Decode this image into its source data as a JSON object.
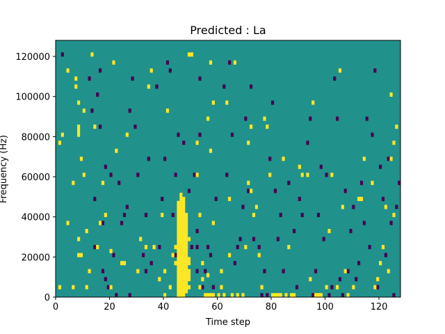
{
  "chart_data": {
    "type": "heatmap",
    "title": "Predicted : La",
    "xlabel": "Time step",
    "ylabel": "Frequency (Hz)",
    "xlim": [
      0,
      128
    ],
    "ylim": [
      0,
      128000
    ],
    "x_ticks": [
      0,
      20,
      40,
      60,
      80,
      100,
      120
    ],
    "y_ticks": [
      0,
      20000,
      40000,
      60000,
      80000,
      100000,
      120000
    ],
    "x_tick_labels": [
      "0",
      "20",
      "40",
      "60",
      "80",
      "100",
      "120"
    ],
    "y_tick_labels": [
      "0",
      "20000",
      "40000",
      "60000",
      "80000",
      "100000",
      "120000"
    ],
    "colormap": "viridis",
    "colors": {
      "background": "#21918c",
      "high": "#fde725",
      "low": "#440154"
    },
    "grid": false,
    "rows": 64,
    "row_height_hz": 2000,
    "high_cells": [
      [
        1,
        2
      ],
      [
        1,
        38
      ],
      [
        2,
        40
      ],
      [
        4,
        18
      ],
      [
        4,
        56
      ],
      [
        6,
        2
      ],
      [
        6,
        28
      ],
      [
        7,
        52
      ],
      [
        7,
        54
      ],
      [
        8,
        10
      ],
      [
        8,
        14
      ],
      [
        8,
        40
      ],
      [
        8,
        41
      ],
      [
        8,
        42
      ],
      [
        8,
        48
      ],
      [
        9,
        34
      ],
      [
        9,
        10
      ],
      [
        10,
        30
      ],
      [
        10,
        46
      ],
      [
        11,
        2
      ],
      [
        11,
        16
      ],
      [
        12,
        6
      ],
      [
        13,
        60
      ],
      [
        14,
        42
      ],
      [
        15,
        12
      ],
      [
        16,
        18
      ],
      [
        17,
        28
      ],
      [
        18,
        20
      ],
      [
        20,
        2
      ],
      [
        20,
        11
      ],
      [
        21,
        58
      ],
      [
        22,
        36
      ],
      [
        24,
        8
      ],
      [
        25,
        8
      ],
      [
        26,
        40
      ],
      [
        30,
        6
      ],
      [
        31,
        14
      ],
      [
        33,
        12
      ],
      [
        34,
        52
      ],
      [
        35,
        56
      ],
      [
        36,
        12
      ],
      [
        38,
        4
      ],
      [
        39,
        20
      ],
      [
        40,
        0
      ],
      [
        40,
        6
      ],
      [
        41,
        46
      ],
      [
        42,
        2
      ],
      [
        43,
        10
      ],
      [
        44,
        8
      ],
      [
        44,
        12
      ],
      [
        45,
        0
      ],
      [
        45,
        1
      ],
      [
        45,
        2
      ],
      [
        45,
        3
      ],
      [
        45,
        4
      ],
      [
        45,
        5
      ],
      [
        45,
        6
      ],
      [
        45,
        7
      ],
      [
        45,
        8
      ],
      [
        45,
        9
      ],
      [
        45,
        10
      ],
      [
        45,
        11
      ],
      [
        45,
        12
      ],
      [
        45,
        13
      ],
      [
        45,
        14
      ],
      [
        45,
        15
      ],
      [
        45,
        16
      ],
      [
        45,
        17
      ],
      [
        45,
        18
      ],
      [
        45,
        19
      ],
      [
        45,
        20
      ],
      [
        45,
        21
      ],
      [
        45,
        22
      ],
      [
        45,
        23
      ],
      [
        46,
        0
      ],
      [
        46,
        1
      ],
      [
        46,
        2
      ],
      [
        46,
        3
      ],
      [
        46,
        4
      ],
      [
        46,
        5
      ],
      [
        46,
        6
      ],
      [
        46,
        7
      ],
      [
        46,
        8
      ],
      [
        46,
        9
      ],
      [
        46,
        10
      ],
      [
        46,
        11
      ],
      [
        46,
        12
      ],
      [
        46,
        13
      ],
      [
        46,
        14
      ],
      [
        46,
        15
      ],
      [
        46,
        16
      ],
      [
        46,
        17
      ],
      [
        46,
        18
      ],
      [
        46,
        19
      ],
      [
        46,
        20
      ],
      [
        46,
        21
      ],
      [
        46,
        22
      ],
      [
        46,
        23
      ],
      [
        46,
        24
      ],
      [
        46,
        25
      ],
      [
        47,
        0
      ],
      [
        47,
        1
      ],
      [
        47,
        2
      ],
      [
        47,
        3
      ],
      [
        47,
        4
      ],
      [
        47,
        5
      ],
      [
        47,
        6
      ],
      [
        47,
        7
      ],
      [
        47,
        8
      ],
      [
        47,
        9
      ],
      [
        47,
        10
      ],
      [
        47,
        11
      ],
      [
        47,
        12
      ],
      [
        47,
        13
      ],
      [
        47,
        14
      ],
      [
        47,
        15
      ],
      [
        47,
        16
      ],
      [
        47,
        17
      ],
      [
        47,
        18
      ],
      [
        47,
        19
      ],
      [
        47,
        20
      ],
      [
        47,
        21
      ],
      [
        47,
        22
      ],
      [
        47,
        23
      ],
      [
        47,
        24
      ],
      [
        48,
        1
      ],
      [
        48,
        2
      ],
      [
        48,
        3
      ],
      [
        48,
        4
      ],
      [
        48,
        5
      ],
      [
        48,
        6
      ],
      [
        48,
        7
      ],
      [
        48,
        8
      ],
      [
        48,
        9
      ],
      [
        48,
        10
      ],
      [
        48,
        11
      ],
      [
        48,
        12
      ],
      [
        48,
        13
      ],
      [
        48,
        14
      ],
      [
        48,
        15
      ],
      [
        48,
        16
      ],
      [
        48,
        17
      ],
      [
        48,
        18
      ],
      [
        48,
        19
      ],
      [
        48,
        20
      ],
      [
        49,
        2
      ],
      [
        49,
        4
      ],
      [
        49,
        5
      ],
      [
        49,
        6
      ],
      [
        49,
        8
      ],
      [
        49,
        9
      ],
      [
        49,
        14
      ],
      [
        49,
        60
      ],
      [
        50,
        60
      ],
      [
        52,
        38
      ],
      [
        52,
        30
      ],
      [
        53,
        2
      ],
      [
        53,
        20
      ],
      [
        54,
        4
      ],
      [
        54,
        8
      ],
      [
        55,
        0
      ],
      [
        56,
        0
      ],
      [
        56,
        5
      ],
      [
        56,
        44
      ],
      [
        57,
        0
      ],
      [
        57,
        36
      ],
      [
        57,
        58
      ],
      [
        58,
        0
      ],
      [
        58,
        48
      ],
      [
        58,
        18
      ],
      [
        60,
        0
      ],
      [
        61,
        2
      ],
      [
        61,
        6
      ],
      [
        62,
        0
      ],
      [
        63,
        48
      ],
      [
        64,
        10
      ],
      [
        64,
        24
      ],
      [
        65,
        0
      ],
      [
        66,
        58
      ],
      [
        67,
        0
      ],
      [
        69,
        0
      ],
      [
        70,
        12
      ],
      [
        71,
        38
      ],
      [
        71,
        28
      ],
      [
        72,
        26
      ],
      [
        72,
        42
      ],
      [
        73,
        20
      ],
      [
        74,
        22
      ],
      [
        75,
        10
      ],
      [
        76,
        2
      ],
      [
        77,
        44
      ],
      [
        78,
        42
      ],
      [
        79,
        30
      ],
      [
        80,
        0
      ],
      [
        81,
        0
      ],
      [
        82,
        0
      ],
      [
        83,
        0
      ],
      [
        84,
        34
      ],
      [
        85,
        0
      ],
      [
        86,
        12
      ],
      [
        87,
        0
      ],
      [
        88,
        0
      ],
      [
        90,
        32
      ],
      [
        91,
        30
      ],
      [
        93,
        30
      ],
      [
        94,
        4
      ],
      [
        95,
        48
      ],
      [
        96,
        0
      ],
      [
        97,
        0
      ],
      [
        98,
        0
      ],
      [
        100,
        2
      ],
      [
        101,
        16
      ],
      [
        102,
        30
      ],
      [
        104,
        2
      ],
      [
        105,
        56
      ],
      [
        106,
        22
      ],
      [
        107,
        6
      ],
      [
        108,
        0
      ],
      [
        110,
        2
      ],
      [
        112,
        24
      ],
      [
        113,
        24
      ],
      [
        114,
        34
      ],
      [
        117,
        28
      ],
      [
        118,
        2
      ],
      [
        119,
        4
      ],
      [
        120,
        8
      ],
      [
        121,
        12
      ],
      [
        122,
        22
      ],
      [
        123,
        6
      ],
      [
        124,
        50
      ],
      [
        124,
        34
      ],
      [
        125,
        20
      ],
      [
        125,
        38
      ],
      [
        126,
        42
      ]
    ],
    "low_cells": [
      [
        2,
        60
      ],
      [
        12,
        54
      ],
      [
        13,
        46
      ],
      [
        14,
        12
      ],
      [
        14,
        24
      ],
      [
        15,
        50
      ],
      [
        16,
        56
      ],
      [
        16,
        42
      ],
      [
        17,
        18
      ],
      [
        17,
        6
      ],
      [
        18,
        4
      ],
      [
        18,
        32
      ],
      [
        19,
        2
      ],
      [
        20,
        30
      ],
      [
        21,
        10
      ],
      [
        22,
        0
      ],
      [
        23,
        28
      ],
      [
        24,
        18
      ],
      [
        25,
        20
      ],
      [
        26,
        22
      ],
      [
        27,
        46
      ],
      [
        27,
        0
      ],
      [
        28,
        54
      ],
      [
        29,
        42
      ],
      [
        30,
        30
      ],
      [
        32,
        10
      ],
      [
        33,
        6
      ],
      [
        33,
        20
      ],
      [
        34,
        34
      ],
      [
        35,
        8
      ],
      [
        37,
        52
      ],
      [
        38,
        12
      ],
      [
        39,
        24
      ],
      [
        40,
        34
      ],
      [
        41,
        58
      ],
      [
        42,
        56
      ],
      [
        43,
        20
      ],
      [
        44,
        10
      ],
      [
        44,
        30
      ],
      [
        45,
        40
      ],
      [
        47,
        38
      ],
      [
        49,
        26
      ],
      [
        50,
        12
      ],
      [
        51,
        30
      ],
      [
        52,
        16
      ],
      [
        52,
        12
      ],
      [
        52,
        6
      ],
      [
        53,
        40
      ],
      [
        53,
        54
      ],
      [
        54,
        2
      ],
      [
        55,
        6
      ],
      [
        56,
        12
      ],
      [
        57,
        10
      ],
      [
        58,
        2
      ],
      [
        59,
        24
      ],
      [
        60,
        0
      ],
      [
        62,
        52
      ],
      [
        63,
        30
      ],
      [
        64,
        58
      ],
      [
        65,
        40
      ],
      [
        66,
        8
      ],
      [
        67,
        12
      ],
      [
        68,
        14
      ],
      [
        69,
        22
      ],
      [
        70,
        44
      ],
      [
        71,
        26
      ],
      [
        72,
        52
      ],
      [
        73,
        14
      ],
      [
        74,
        22
      ],
      [
        75,
        12
      ],
      [
        76,
        0
      ],
      [
        77,
        6
      ],
      [
        78,
        0
      ],
      [
        79,
        34
      ],
      [
        80,
        48
      ],
      [
        81,
        26
      ],
      [
        82,
        14
      ],
      [
        83,
        20
      ],
      [
        84,
        6
      ],
      [
        86,
        28
      ],
      [
        88,
        16
      ],
      [
        89,
        2
      ],
      [
        90,
        24
      ],
      [
        91,
        20
      ],
      [
        93,
        38
      ],
      [
        94,
        44
      ],
      [
        95,
        0
      ],
      [
        96,
        6
      ],
      [
        97,
        20
      ],
      [
        98,
        32
      ],
      [
        99,
        14
      ],
      [
        100,
        30
      ],
      [
        101,
        0
      ],
      [
        102,
        2
      ],
      [
        103,
        54
      ],
      [
        104,
        44
      ],
      [
        105,
        4
      ],
      [
        106,
        0
      ],
      [
        107,
        26
      ],
      [
        108,
        6
      ],
      [
        109,
        16
      ],
      [
        110,
        22
      ],
      [
        111,
        4
      ],
      [
        112,
        8
      ],
      [
        113,
        28
      ],
      [
        114,
        18
      ],
      [
        115,
        44
      ],
      [
        116,
        12
      ],
      [
        117,
        40
      ],
      [
        118,
        56
      ],
      [
        119,
        2
      ],
      [
        120,
        32
      ],
      [
        121,
        24
      ],
      [
        122,
        10
      ],
      [
        123,
        34
      ],
      [
        124,
        18
      ],
      [
        125,
        0
      ],
      [
        126,
        22
      ],
      [
        127,
        28
      ]
    ]
  }
}
